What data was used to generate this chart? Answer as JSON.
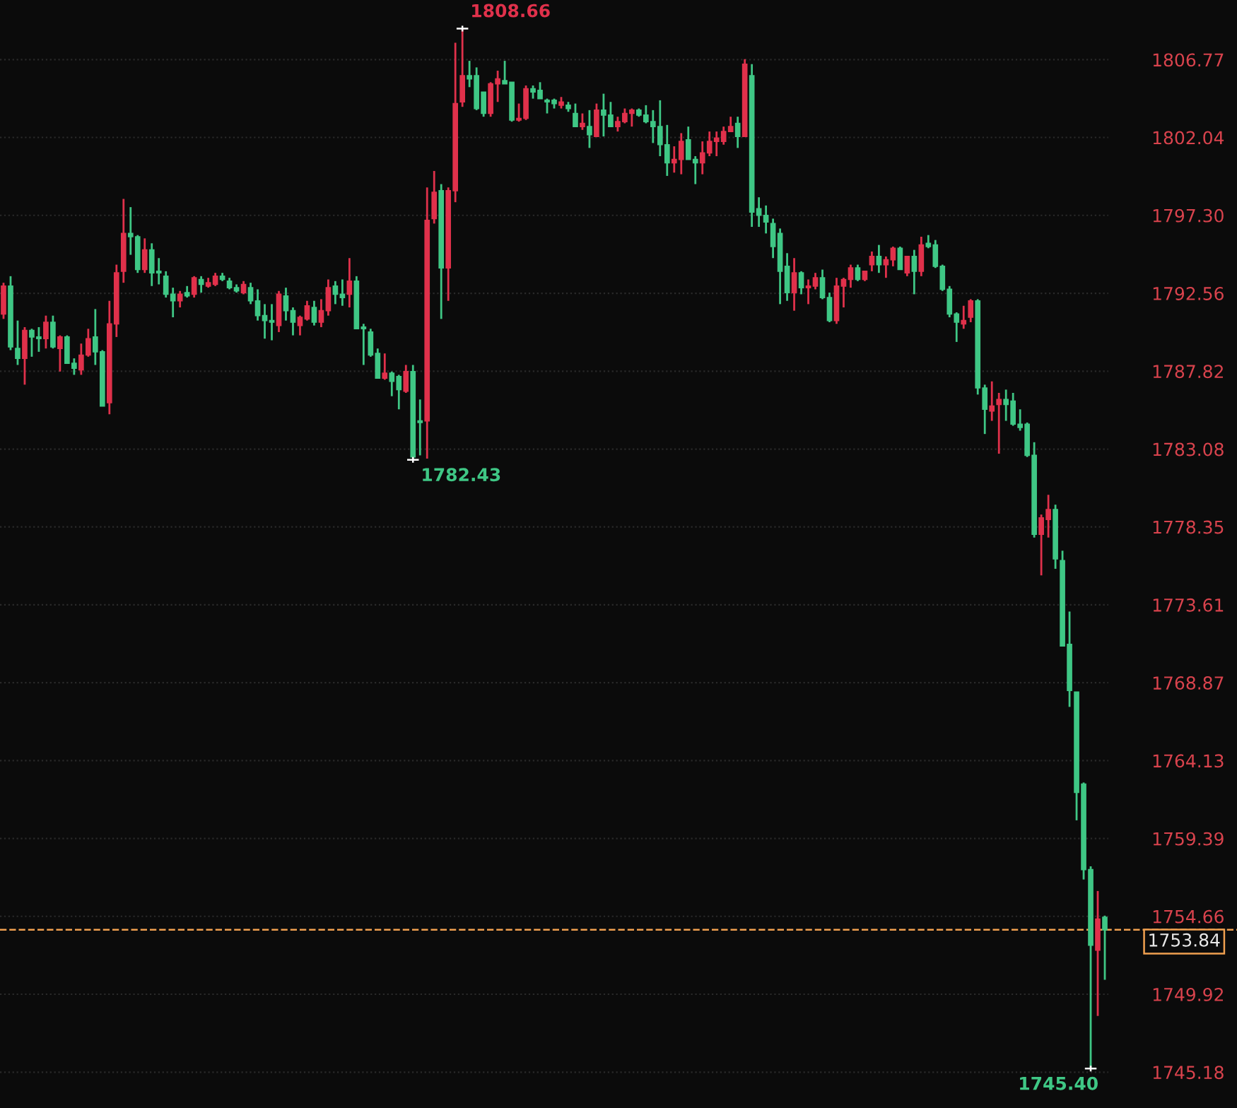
{
  "chart_data": {
    "type": "candlestick",
    "categories": [
      null,
      null,
      null,
      null,
      null,
      null,
      null,
      null,
      null,
      null,
      null,
      null,
      null,
      null,
      null,
      null,
      null,
      null,
      null,
      null,
      null,
      null,
      null,
      null,
      null,
      null,
      null,
      null,
      null,
      null,
      null,
      null,
      null,
      null,
      null,
      null,
      null,
      null,
      null,
      null,
      null,
      null,
      null,
      null,
      null,
      null,
      null,
      null,
      null,
      null,
      null,
      null,
      null,
      null,
      null,
      null,
      null,
      null,
      null,
      null,
      null,
      null,
      null,
      null,
      null,
      null,
      null,
      null,
      null,
      null,
      null,
      null,
      null,
      null,
      null,
      null,
      null,
      null,
      null,
      null,
      null,
      null,
      null,
      null,
      null,
      null,
      null,
      null,
      null,
      null,
      null,
      null,
      null,
      null,
      null,
      null,
      null,
      null,
      null,
      null,
      null,
      null,
      null,
      null,
      null,
      null,
      null,
      null,
      null,
      null,
      null,
      null,
      null,
      null,
      null,
      null,
      null,
      null,
      null,
      null,
      null,
      null,
      null,
      null,
      null,
      null,
      null,
      null,
      null,
      null,
      null,
      null,
      null,
      null,
      null,
      null,
      null,
      null,
      null,
      null,
      null,
      null,
      null,
      null,
      null,
      null,
      null,
      null,
      null,
      null,
      null,
      null,
      null,
      null,
      null,
      null,
      null
    ],
    "ohlc": [
      [
        1791.3,
        1793.2,
        1791.0,
        1793.0
      ],
      [
        1793.0,
        1793.6,
        1789.1,
        1789.3
      ],
      [
        1789.2,
        1790.9,
        1788.2,
        1788.6
      ],
      [
        1788.6,
        1790.5,
        1787.0,
        1790.3
      ],
      [
        1790.3,
        1790.4,
        1788.7,
        1789.9
      ],
      [
        1789.9,
        1790.5,
        1789.0,
        1789.8
      ],
      [
        1789.8,
        1791.2,
        1789.2,
        1790.8
      ],
      [
        1790.8,
        1791.2,
        1789.2,
        1789.3
      ],
      [
        1789.2,
        1790.0,
        1787.8,
        1789.9
      ],
      [
        1789.9,
        1790.0,
        1788.3,
        1788.3
      ],
      [
        1788.3,
        1788.6,
        1787.6,
        1788.0
      ],
      [
        1787.9,
        1789.5,
        1787.6,
        1788.8
      ],
      [
        1788.8,
        1790.4,
        1788.7,
        1789.8
      ],
      [
        1789.9,
        1791.6,
        1788.2,
        1789.0
      ],
      [
        1789.0,
        1789.1,
        1785.7,
        1785.7
      ],
      [
        1785.9,
        1792.1,
        1785.2,
        1790.7
      ],
      [
        1790.7,
        1794.3,
        1789.9,
        1793.8
      ],
      [
        1793.9,
        1798.3,
        1793.2,
        1796.2
      ],
      [
        1796.2,
        1797.8,
        1794.9,
        1796.0
      ],
      [
        1796.0,
        1796.1,
        1793.8,
        1794.0
      ],
      [
        1794.0,
        1795.9,
        1793.8,
        1795.2
      ],
      [
        1795.2,
        1795.6,
        1793.0,
        1793.8
      ],
      [
        1793.9,
        1794.7,
        1793.1,
        1793.8
      ],
      [
        1793.6,
        1793.9,
        1792.3,
        1792.5
      ],
      [
        1792.5,
        1792.9,
        1791.1,
        1792.1
      ],
      [
        1792.1,
        1792.7,
        1791.7,
        1792.5
      ],
      [
        1792.6,
        1793.0,
        1792.3,
        1792.4
      ],
      [
        1792.5,
        1793.6,
        1792.3,
        1793.5
      ],
      [
        1793.4,
        1793.6,
        1792.6,
        1793.1
      ],
      [
        1793.0,
        1793.5,
        1792.9,
        1793.2
      ],
      [
        1793.1,
        1793.8,
        1793.0,
        1793.6
      ],
      [
        1793.6,
        1793.8,
        1793.3,
        1793.4
      ],
      [
        1793.3,
        1793.5,
        1792.8,
        1792.9
      ],
      [
        1792.9,
        1793.1,
        1792.6,
        1792.7
      ],
      [
        1792.6,
        1793.3,
        1792.5,
        1793.1
      ],
      [
        1792.9,
        1793.2,
        1791.9,
        1792.1
      ],
      [
        1792.1,
        1792.8,
        1790.9,
        1791.2
      ],
      [
        1791.2,
        1791.9,
        1789.8,
        1790.9
      ],
      [
        1790.9,
        1791.9,
        1789.7,
        1790.8
      ],
      [
        1790.6,
        1792.7,
        1790.2,
        1792.5
      ],
      [
        1792.4,
        1792.9,
        1790.9,
        1791.5
      ],
      [
        1791.5,
        1791.7,
        1790.0,
        1790.8
      ],
      [
        1790.6,
        1791.2,
        1790.0,
        1791.1
      ],
      [
        1791.0,
        1792.1,
        1790.9,
        1791.8
      ],
      [
        1791.7,
        1792.1,
        1790.6,
        1790.8
      ],
      [
        1790.8,
        1792.2,
        1790.5,
        1791.5
      ],
      [
        1791.5,
        1793.4,
        1791.2,
        1792.9
      ],
      [
        1793.0,
        1793.3,
        1791.9,
        1792.5
      ],
      [
        1792.5,
        1793.4,
        1791.8,
        1792.3
      ],
      [
        1792.5,
        1794.7,
        1791.7,
        1793.3
      ],
      [
        1793.3,
        1793.6,
        1790.4,
        1790.4
      ],
      [
        1790.5,
        1790.7,
        1788.2,
        1790.4
      ],
      [
        1790.2,
        1790.4,
        1788.7,
        1788.8
      ],
      [
        1788.9,
        1789.2,
        1787.4,
        1787.4
      ],
      [
        1787.4,
        1788.9,
        1787.3,
        1787.7
      ],
      [
        1787.7,
        1787.8,
        1786.3,
        1787.2
      ],
      [
        1787.5,
        1787.6,
        1785.5,
        1786.7
      ],
      [
        1786.6,
        1788.2,
        1786.5,
        1787.8
      ],
      [
        1787.8,
        1788.2,
        1782.43,
        1782.6
      ],
      [
        1784.8,
        1786.1,
        1782.7,
        1784.7
      ],
      [
        1784.8,
        1799.0,
        1782.5,
        1797.0
      ],
      [
        1797.1,
        1800.0,
        1796.8,
        1798.7
      ],
      [
        1798.8,
        1799.2,
        1791.0,
        1794.1
      ],
      [
        1794.1,
        1799.0,
        1792.1,
        1798.8
      ],
      [
        1798.8,
        1807.8,
        1798.1,
        1804.1
      ],
      [
        1804.2,
        1808.66,
        1803.9,
        1805.8
      ],
      [
        1805.8,
        1806.7,
        1805.1,
        1805.6
      ],
      [
        1805.8,
        1806.3,
        1803.7,
        1803.8
      ],
      [
        1804.8,
        1804.8,
        1803.3,
        1803.5
      ],
      [
        1803.5,
        1805.4,
        1803.3,
        1805.3
      ],
      [
        1805.3,
        1806.1,
        1804.2,
        1805.6
      ],
      [
        1805.5,
        1806.7,
        1805.3,
        1805.3
      ],
      [
        1805.4,
        1805.4,
        1803.0,
        1803.1
      ],
      [
        1803.1,
        1804.1,
        1803.0,
        1803.2
      ],
      [
        1803.2,
        1805.2,
        1803.1,
        1805.0
      ],
      [
        1805.0,
        1805.2,
        1804.4,
        1804.8
      ],
      [
        1804.9,
        1805.4,
        1804.4,
        1804.4
      ],
      [
        1804.3,
        1804.4,
        1803.5,
        1804.2
      ],
      [
        1804.3,
        1804.4,
        1803.8,
        1804.1
      ],
      [
        1804.0,
        1804.5,
        1803.8,
        1804.2
      ],
      [
        1804.0,
        1804.2,
        1803.6,
        1803.8
      ],
      [
        1803.5,
        1804.1,
        1802.7,
        1802.7
      ],
      [
        1802.7,
        1803.5,
        1802.5,
        1802.9
      ],
      [
        1802.7,
        1803.7,
        1801.4,
        1802.2
      ],
      [
        1802.1,
        1804.1,
        1802.1,
        1803.7
      ],
      [
        1803.7,
        1804.7,
        1802.1,
        1803.4
      ],
      [
        1803.4,
        1804.2,
        1802.7,
        1802.7
      ],
      [
        1802.7,
        1803.3,
        1802.4,
        1803.0
      ],
      [
        1803.0,
        1803.8,
        1802.9,
        1803.5
      ],
      [
        1803.5,
        1803.8,
        1802.7,
        1803.7
      ],
      [
        1803.7,
        1803.8,
        1803.3,
        1803.4
      ],
      [
        1803.4,
        1804.0,
        1802.9,
        1803.0
      ],
      [
        1803.0,
        1803.7,
        1801.7,
        1802.7
      ],
      [
        1802.7,
        1804.3,
        1800.9,
        1801.6
      ],
      [
        1801.6,
        1802.8,
        1799.7,
        1800.5
      ],
      [
        1800.5,
        1801.5,
        1799.9,
        1800.7
      ],
      [
        1800.7,
        1802.3,
        1799.8,
        1801.8
      ],
      [
        1801.9,
        1802.7,
        1800.7,
        1800.7
      ],
      [
        1800.7,
        1800.9,
        1799.2,
        1800.5
      ],
      [
        1800.5,
        1801.8,
        1799.8,
        1801.1
      ],
      [
        1801.1,
        1802.4,
        1800.9,
        1801.8
      ],
      [
        1801.8,
        1802.4,
        1800.9,
        1802.0
      ],
      [
        1801.8,
        1802.7,
        1801.6,
        1802.4
      ],
      [
        1802.4,
        1803.3,
        1802.4,
        1802.7
      ],
      [
        1802.9,
        1803.3,
        1801.4,
        1802.1
      ],
      [
        1802.1,
        1806.8,
        1802.1,
        1806.5
      ],
      [
        1805.8,
        1806.5,
        1796.6,
        1797.5
      ],
      [
        1797.7,
        1798.4,
        1796.6,
        1797.3
      ],
      [
        1797.3,
        1797.9,
        1796.2,
        1796.9
      ],
      [
        1796.8,
        1797.1,
        1794.7,
        1795.4
      ],
      [
        1796.2,
        1796.5,
        1791.9,
        1793.9
      ],
      [
        1794.2,
        1795.0,
        1792.1,
        1792.6
      ],
      [
        1792.6,
        1794.7,
        1791.5,
        1793.8
      ],
      [
        1793.8,
        1793.9,
        1792.5,
        1792.9
      ],
      [
        1792.9,
        1793.4,
        1791.9,
        1793.0
      ],
      [
        1793.0,
        1793.8,
        1792.8,
        1793.5
      ],
      [
        1793.5,
        1794.0,
        1792.2,
        1792.3
      ],
      [
        1792.3,
        1792.6,
        1790.8,
        1790.9
      ],
      [
        1790.9,
        1793.5,
        1790.7,
        1793.0
      ],
      [
        1793.0,
        1793.5,
        1791.7,
        1793.4
      ],
      [
        1793.4,
        1794.3,
        1792.9,
        1794.1
      ],
      [
        1794.1,
        1794.3,
        1793.3,
        1793.4
      ],
      [
        1793.4,
        1793.9,
        1793.3,
        1793.9
      ],
      [
        1794.3,
        1795.1,
        1793.9,
        1794.8
      ],
      [
        1794.8,
        1795.5,
        1793.8,
        1794.3
      ],
      [
        1794.3,
        1794.8,
        1793.5,
        1794.6
      ],
      [
        1794.6,
        1795.4,
        1794.2,
        1795.3
      ],
      [
        1795.3,
        1795.4,
        1794.0,
        1794.0
      ],
      [
        1793.8,
        1794.8,
        1793.6,
        1794.8
      ],
      [
        1794.8,
        1795.2,
        1792.5,
        1793.9
      ],
      [
        1793.9,
        1796.0,
        1793.6,
        1795.5
      ],
      [
        1795.6,
        1796.1,
        1795.3,
        1795.4
      ],
      [
        1795.5,
        1795.8,
        1794.1,
        1794.2
      ],
      [
        1794.2,
        1794.3,
        1792.7,
        1792.8
      ],
      [
        1792.8,
        1793.0,
        1791.1,
        1791.3
      ],
      [
        1791.3,
        1791.4,
        1789.6,
        1790.8
      ],
      [
        1790.7,
        1791.8,
        1790.4,
        1790.9
      ],
      [
        1791.1,
        1792.2,
        1790.8,
        1792.1
      ],
      [
        1792.1,
        1792.2,
        1786.4,
        1786.8
      ],
      [
        1786.8,
        1787.0,
        1784.0,
        1785.5
      ],
      [
        1785.4,
        1787.2,
        1784.8,
        1785.7
      ],
      [
        1785.8,
        1786.5,
        1782.8,
        1786.1
      ],
      [
        1786.1,
        1786.7,
        1784.8,
        1785.8
      ],
      [
        1786.0,
        1786.5,
        1784.5,
        1784.6
      ],
      [
        1784.6,
        1785.5,
        1784.2,
        1784.4
      ],
      [
        1784.6,
        1784.7,
        1782.6,
        1782.7
      ],
      [
        1782.7,
        1783.5,
        1777.7,
        1777.9
      ],
      [
        1777.9,
        1779.1,
        1775.4,
        1778.9
      ],
      [
        1778.8,
        1780.3,
        1777.7,
        1779.4
      ],
      [
        1779.4,
        1779.7,
        1775.8,
        1776.4
      ],
      [
        1776.3,
        1776.9,
        1771.1,
        1771.1
      ],
      [
        1771.2,
        1773.2,
        1767.4,
        1768.4
      ],
      [
        1768.3,
        1768.3,
        1760.5,
        1762.2
      ],
      [
        1762.7,
        1762.8,
        1756.9,
        1757.5
      ],
      [
        1757.5,
        1757.7,
        1745.4,
        1752.9
      ],
      [
        1752.6,
        1756.2,
        1748.6,
        1754.5
      ],
      [
        1754.6,
        1754.7,
        1750.8,
        1753.84
      ]
    ],
    "colors": [
      "#e0314b",
      "#3fc785",
      "#3fc785",
      "#e0314b",
      "#3fc785",
      "#3fc785",
      "#e0314b",
      "#3fc785",
      "#e0314b",
      "#3fc785",
      "#3fc785",
      "#e0314b",
      "#e0314b",
      "#3fc785",
      "#3fc785",
      "#e0314b",
      "#e0314b",
      "#e0314b",
      "#3fc785",
      "#3fc785",
      "#e0314b",
      "#3fc785",
      "#3fc785",
      "#3fc785",
      "#3fc785",
      "#e0314b",
      "#3fc785",
      "#e0314b",
      "#3fc785",
      "#e0314b",
      "#e0314b",
      "#3fc785",
      "#3fc785",
      "#3fc785",
      "#e0314b",
      "#3fc785",
      "#3fc785",
      "#3fc785",
      "#3fc785",
      "#e0314b",
      "#3fc785",
      "#3fc785",
      "#e0314b",
      "#e0314b",
      "#3fc785",
      "#e0314b",
      "#e0314b",
      "#3fc785",
      "#3fc785",
      "#e0314b",
      "#3fc785",
      "#3fc785",
      "#3fc785",
      "#3fc785",
      "#e0314b",
      "#3fc785",
      "#3fc785",
      "#e0314b",
      "#3fc785",
      "#3fc785",
      "#e0314b",
      "#e0314b",
      "#3fc785",
      "#e0314b",
      "#e0314b",
      "#e0314b",
      "#3fc785",
      "#3fc785",
      "#3fc785",
      "#e0314b",
      "#e0314b",
      "#3fc785",
      "#3fc785",
      "#e0314b",
      "#e0314b",
      "#3fc785",
      "#3fc785",
      "#3fc785",
      "#3fc785",
      "#e0314b",
      "#3fc785",
      "#3fc785",
      "#e0314b",
      "#3fc785",
      "#e0314b",
      "#3fc785",
      "#3fc785",
      "#e0314b",
      "#e0314b",
      "#e0314b",
      "#3fc785",
      "#3fc785",
      "#3fc785",
      "#3fc785",
      "#3fc785",
      "#e0314b",
      "#e0314b",
      "#3fc785",
      "#3fc785",
      "#e0314b",
      "#e0314b",
      "#e0314b",
      "#e0314b",
      "#e0314b",
      "#3fc785",
      "#e0314b",
      "#3fc785",
      "#3fc785",
      "#3fc785",
      "#3fc785",
      "#3fc785",
      "#3fc785",
      "#e0314b",
      "#3fc785",
      "#e0314b",
      "#e0314b",
      "#3fc785",
      "#3fc785",
      "#e0314b",
      "#e0314b",
      "#e0314b",
      "#3fc785",
      "#e0314b",
      "#e0314b",
      "#3fc785",
      "#e0314b",
      "#e0314b",
      "#3fc785",
      "#e0314b",
      "#3fc785",
      "#e0314b",
      "#3fc785",
      "#3fc785",
      "#3fc785",
      "#3fc785",
      "#3fc785",
      "#e0314b",
      "#e0314b",
      "#3fc785",
      "#3fc785",
      "#e0314b",
      "#e0314b",
      "#3fc785",
      "#3fc785",
      "#3fc785",
      "#3fc785",
      "#3fc785",
      "#e0314b",
      "#e0314b",
      "#3fc785",
      "#3fc785",
      "#3fc785",
      "#3fc785",
      "#3fc785",
      "#3fc785",
      "#e0314b",
      "#3fc785"
    ],
    "ylim": [
      1743.0,
      1810.4
    ],
    "yticks": [
      1806.77,
      1802.04,
      {
        "value": 1797.3,
        "label": "1797.30"
      },
      1792.56,
      1787.82,
      1783.08,
      1778.35,
      1773.61,
      1768.87,
      1764.13,
      1759.39,
      1754.66,
      1749.92,
      1745.18
    ],
    "grid": "y",
    "ref_lines": [
      {
        "axis": "y",
        "value": 1753.84,
        "label": "1753.84",
        "color": "#f0a050",
        "line_style": "dashed"
      }
    ],
    "annotations": [
      "1808.66",
      "1782.43",
      "1745.40"
    ]
  }
}
